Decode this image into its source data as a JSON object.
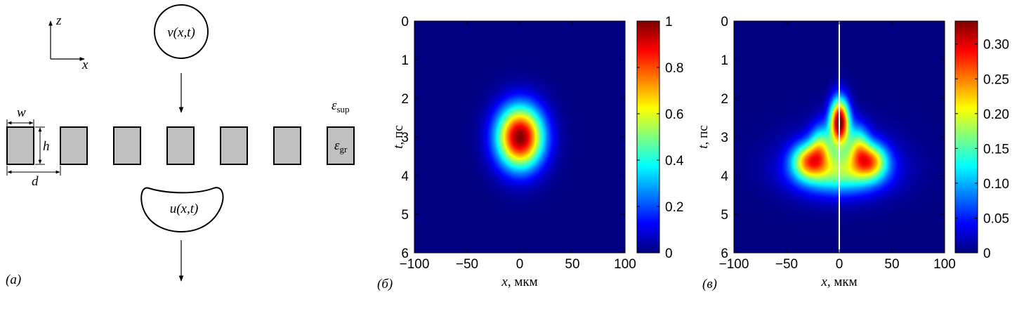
{
  "panel_a": {
    "label": "(а)",
    "axis_z": "z",
    "axis_x": "x",
    "incident_wave": "v(x,t)",
    "transmitted_wave": "u(x,t)",
    "dim_w": "w",
    "dim_h": "h",
    "dim_d": "d",
    "eps_sup_symbol": "ε",
    "eps_sup_sub": "sup",
    "eps_gr_symbol": "ε",
    "eps_gr_sub": "gr",
    "grating_bar_count": 7,
    "bar_fill": "#c0c0c0"
  },
  "chart_data": [
    {
      "type": "heatmap",
      "panel_label": "(б)",
      "xlabel_var": "x",
      "xlabel_unit": ", мкм",
      "ylabel_var": "t",
      "ylabel_unit": ", пс",
      "xlim": [
        -100,
        100
      ],
      "ylim": [
        0,
        6
      ],
      "y_inverted": true,
      "xticks": [
        "−100",
        "−50",
        "0",
        "50",
        "100"
      ],
      "yticks": [
        "0",
        "1",
        "2",
        "3",
        "4",
        "5",
        "6"
      ],
      "colorbar_range": [
        0,
        1
      ],
      "colorbar_ticks": [
        "0",
        "0.2",
        "0.4",
        "0.6",
        "0.8",
        "1"
      ],
      "colorbar_tick_values": [
        0,
        0.2,
        0.4,
        0.6,
        0.8,
        1
      ],
      "colormap": "jet",
      "peak": {
        "x": 0,
        "t": 3,
        "value": 1
      },
      "spread": {
        "x": 22,
        "t": 0.8
      }
    },
    {
      "type": "heatmap",
      "panel_label": "(в)",
      "xlabel_var": "x",
      "xlabel_unit": ", мкм",
      "ylabel_var": "t",
      "ylabel_unit": ", пс",
      "xlim": [
        -100,
        100
      ],
      "ylim": [
        0,
        6
      ],
      "y_inverted": true,
      "xticks": [
        "−100",
        "−50",
        "0",
        "50",
        "100"
      ],
      "yticks": [
        "0",
        "1",
        "2",
        "3",
        "4",
        "5",
        "6"
      ],
      "colorbar_range": [
        0,
        0.333
      ],
      "colorbar_ticks": [
        "0",
        "0.05",
        "0.10",
        "0.15",
        "0.20",
        "0.25",
        "0.30"
      ],
      "colorbar_tick_values": [
        0,
        0.05,
        0.1,
        0.15,
        0.2,
        0.25,
        0.3
      ],
      "colormap": "jet",
      "center_line_x": 0,
      "center_line_color": "#ffffff",
      "peak": {
        "x": 0,
        "t": 2.6,
        "value": 0.333
      }
    }
  ]
}
